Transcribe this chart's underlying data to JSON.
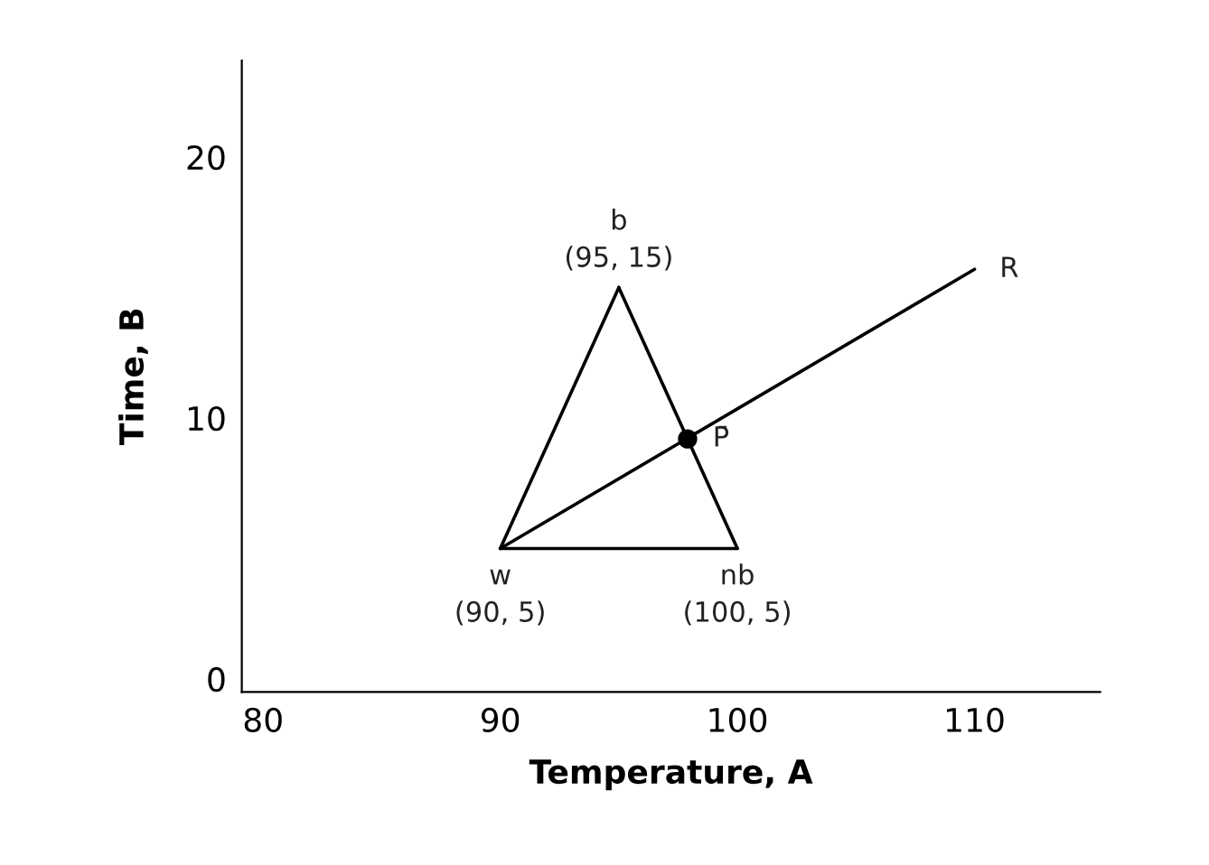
{
  "chart_data": {
    "type": "line",
    "xlabel": "Temperature, A",
    "ylabel": "Time, B",
    "xlim": [
      79.1,
      115.3
    ],
    "ylim": [
      -0.5,
      23.7
    ],
    "xticks": [
      80,
      90,
      100,
      110
    ],
    "yticks": [
      0,
      10,
      20
    ],
    "grid": false,
    "line_style": "solid",
    "series": [
      {
        "color": "#000000",
        "x": [
          90,
          95
        ],
        "values": [
          5,
          15
        ]
      },
      {
        "color": "#000000",
        "x": [
          95,
          100
        ],
        "values": [
          15,
          5
        ]
      },
      {
        "color": "#000000",
        "x": [
          90,
          100
        ],
        "values": [
          5,
          5
        ]
      },
      {
        "color": "#000000",
        "x": [
          90,
          110
        ],
        "values": [
          5,
          15.7
        ]
      },
      {
        "type": "scatter",
        "color": "#000000",
        "x": [
          97.9
        ],
        "values": [
          9.2
        ]
      }
    ],
    "annotations": [
      {
        "text": "b\n(95, 15)",
        "x": 95,
        "y": 15
      },
      {
        "text": "w\n(90, 5)",
        "x": 90,
        "y": 5
      },
      {
        "text": "nb\n(100, 5)",
        "x": 100,
        "y": 5
      },
      {
        "text": "R",
        "x": 110,
        "y": 15.7
      },
      {
        "text": "P̄",
        "x": 97.9,
        "y": 9.2
      }
    ]
  }
}
